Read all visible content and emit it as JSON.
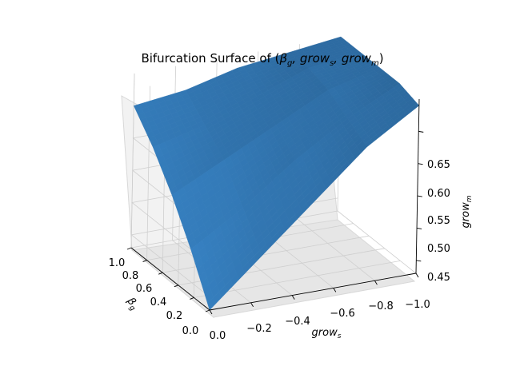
{
  "chart_data": {
    "type": "surface",
    "title_plain": "Bifurcation Surface of (",
    "title_math": "β",
    "title_parts": [
      "g",
      ", grow",
      "s",
      ", grow",
      "m",
      ")"
    ],
    "xlabel_main": "grow",
    "xlabel_sub": "s",
    "ylabel_main": "β",
    "ylabel_sub": "g",
    "zlabel_main": "grow",
    "zlabel_sub": "m",
    "x_ticks": [
      "0.0",
      "−0.2",
      "−0.4",
      "−0.6",
      "−0.8",
      "−1.0"
    ],
    "x_tick_values": [
      0.0,
      -0.2,
      -0.4,
      -0.6,
      -0.8,
      -1.0
    ],
    "y_ticks": [
      "0.0",
      "0.2",
      "0.4",
      "0.6",
      "0.8",
      "1.0"
    ],
    "y_tick_values": [
      0.0,
      0.2,
      0.4,
      0.6,
      0.8,
      1.0
    ],
    "z_ticks": [
      "0.45",
      "0.50",
      "0.55",
      "0.60",
      "0.65"
    ],
    "z_tick_values": [
      0.45,
      0.5,
      0.55,
      0.6,
      0.65
    ],
    "xlim": [
      0.0,
      -1.0
    ],
    "ylim": [
      0.0,
      1.0
    ],
    "zlim": [
      0.43,
      0.7
    ],
    "grid": true,
    "surface_color": "#2e6da4",
    "surface_samples": {
      "description_axes": "rows = beta_g from 0 to 1; columns = grow_s from 0 to -1",
      "beta_g": [
        0.0,
        0.25,
        0.5,
        0.75,
        1.0
      ],
      "grow_s": [
        0.0,
        -0.25,
        -0.5,
        -0.75,
        -1.0
      ],
      "grow_m": [
        [
          0.43,
          0.5,
          0.57,
          0.64,
          0.69
        ],
        [
          0.5,
          0.55,
          0.61,
          0.66,
          0.7
        ],
        [
          0.56,
          0.6,
          0.64,
          0.68,
          0.7
        ],
        [
          0.61,
          0.63,
          0.66,
          0.69,
          0.7
        ],
        [
          0.65,
          0.66,
          0.68,
          0.69,
          0.7
        ]
      ]
    }
  }
}
